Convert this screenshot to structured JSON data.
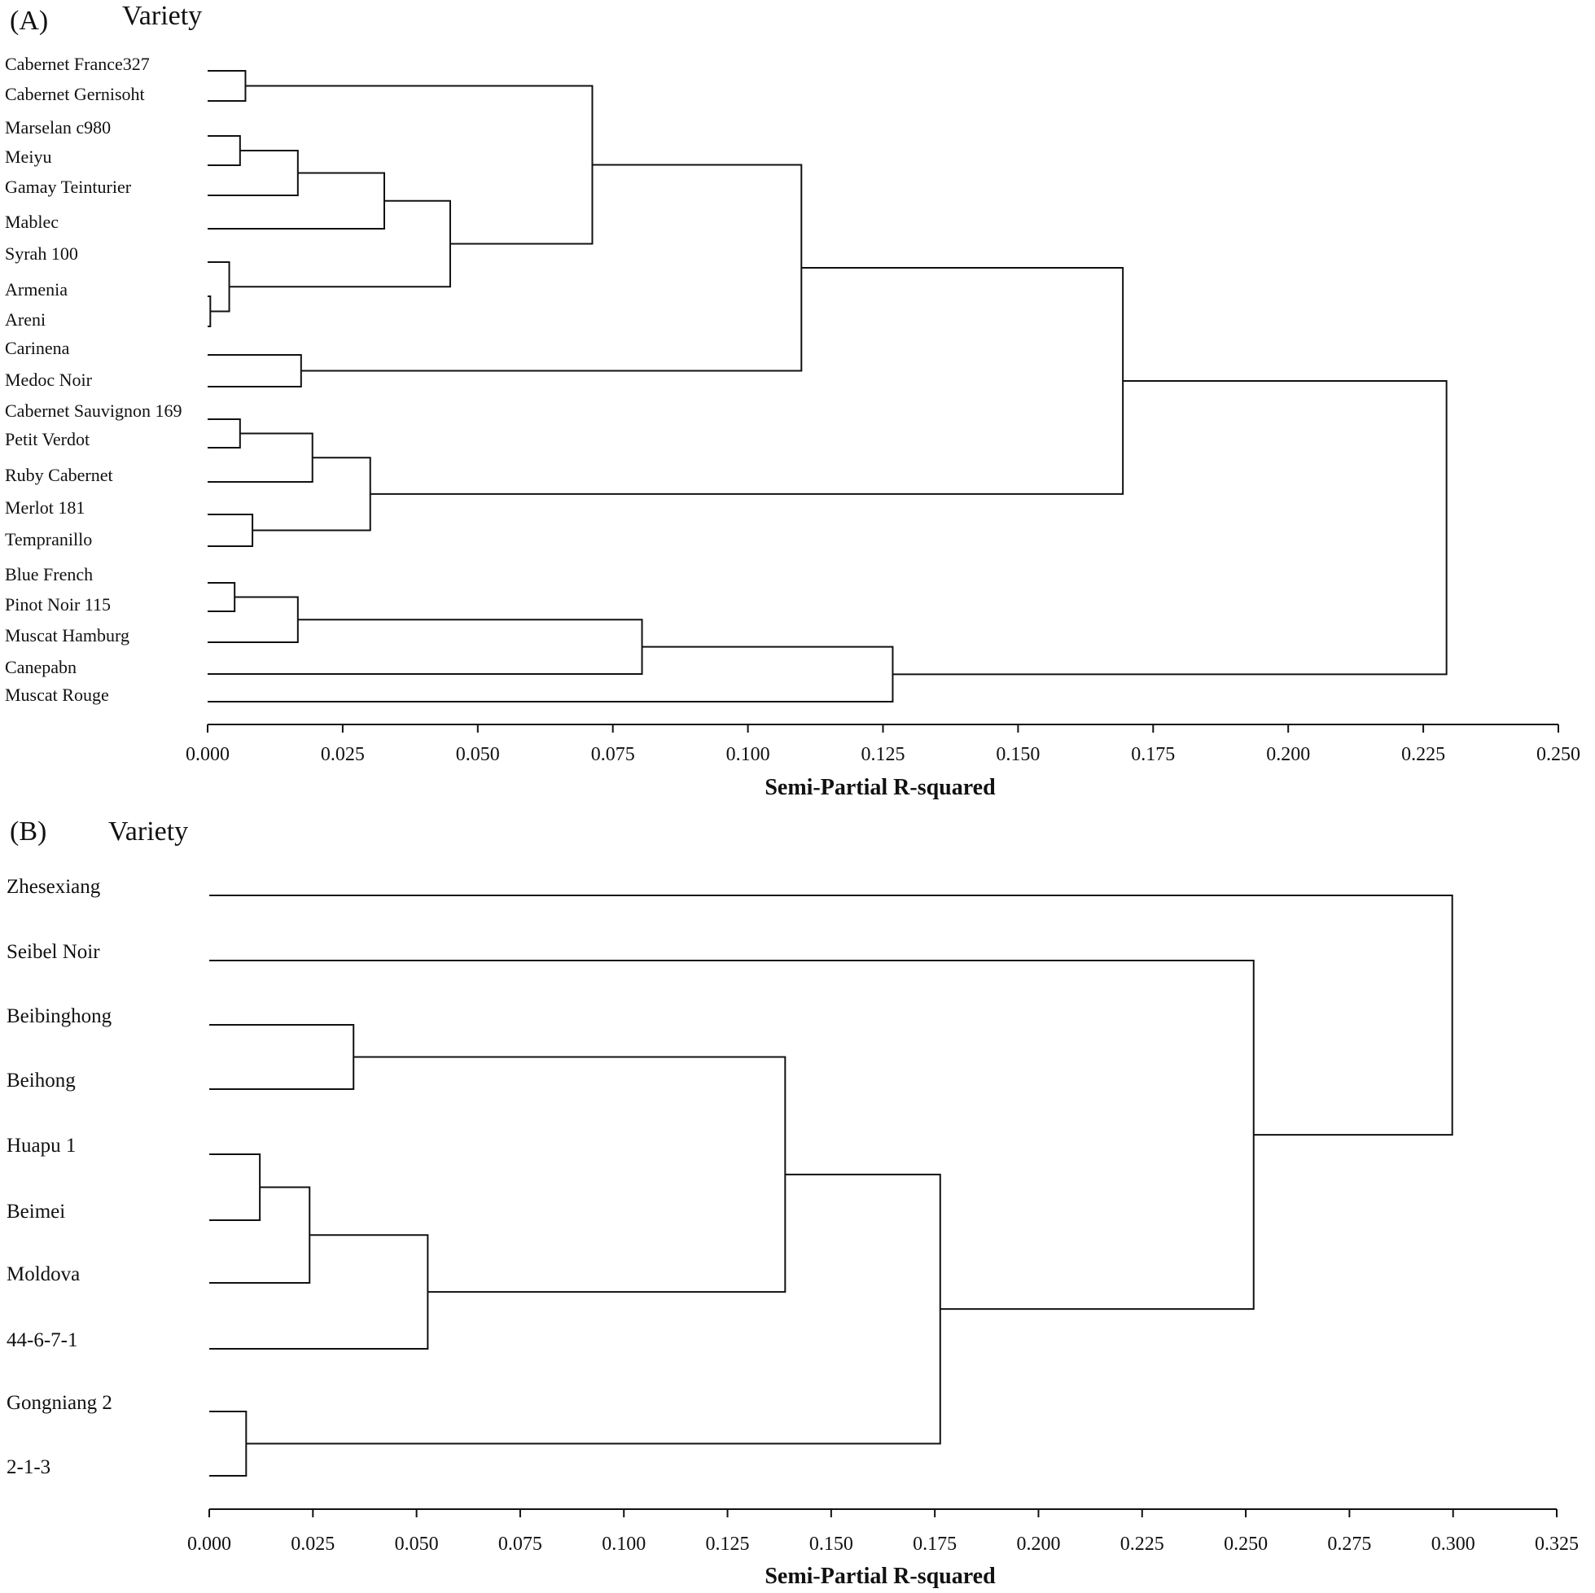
{
  "chart_data": [
    {
      "type": "dendrogram",
      "panel": "(A)",
      "title": "Variety",
      "xlabel": "Semi-Partial R-squared",
      "xlim": [
        0,
        0.25
      ],
      "ticks": [
        "0.000",
        "0.025",
        "0.050",
        "0.075",
        "0.100",
        "0.125",
        "0.150",
        "0.175",
        "0.200",
        "0.225",
        "0.250"
      ],
      "leaves": [
        "Cabernet France327",
        "Cabernet Gernisoht",
        "Marselan c980",
        "Meiyu",
        "Gamay Teinturier",
        "Mablec",
        "Syrah 100",
        "Armenia",
        "Areni",
        "Carinena",
        "Medoc Noir",
        "Cabernet Sauvignon 169",
        "Petit Verdot",
        "Ruby Cabernet",
        "Merlot 181",
        "Tempranillo",
        "Blue French",
        "Pinot Noir 115",
        "Muscat Hamburg",
        "Canepabn",
        "Muscat Rouge"
      ],
      "merges": [
        {
          "id": "a",
          "children": [
            "L:Cabernet France327",
            "L:Cabernet Gernisoht"
          ],
          "height": 0.007
        },
        {
          "id": "b",
          "children": [
            "L:Marselan c980",
            "L:Meiyu"
          ],
          "height": 0.006
        },
        {
          "id": "c",
          "children": [
            "N:b",
            "L:Gamay Teinturier"
          ],
          "height": 0.0167
        },
        {
          "id": "d",
          "children": [
            "N:c",
            "L:Mablec"
          ],
          "height": 0.0327
        },
        {
          "id": "e",
          "children": [
            "L:Armenia",
            "L:Areni"
          ],
          "height": 0.0005
        },
        {
          "id": "f",
          "children": [
            "L:Syrah 100",
            "N:e"
          ],
          "height": 0.004
        },
        {
          "id": "g",
          "children": [
            "N:d",
            "N:f"
          ],
          "height": 0.0449
        },
        {
          "id": "h",
          "children": [
            "N:a",
            "N:g"
          ],
          "height": 0.0712
        },
        {
          "id": "i",
          "children": [
            "L:Carinena",
            "L:Medoc Noir"
          ],
          "height": 0.0173
        },
        {
          "id": "j",
          "children": [
            "N:h",
            "N:i"
          ],
          "height": 0.1099
        },
        {
          "id": "k",
          "children": [
            "L:Cabernet Sauvignon 169",
            "L:Petit Verdot"
          ],
          "height": 0.006
        },
        {
          "id": "l",
          "children": [
            "N:k",
            "L:Ruby Cabernet"
          ],
          "height": 0.0194
        },
        {
          "id": "m",
          "children": [
            "L:Merlot 181",
            "L:Tempranillo"
          ],
          "height": 0.0083
        },
        {
          "id": "n",
          "children": [
            "N:l",
            "N:m"
          ],
          "height": 0.0301
        },
        {
          "id": "o",
          "children": [
            "N:j",
            "N:n"
          ],
          "height": 0.1694
        },
        {
          "id": "p",
          "children": [
            "L:Blue French",
            "L:Pinot Noir 115"
          ],
          "height": 0.005
        },
        {
          "id": "q",
          "children": [
            "N:p",
            "L:Muscat Hamburg"
          ],
          "height": 0.0167
        },
        {
          "id": "r",
          "children": [
            "N:q",
            "L:Canepabn"
          ],
          "height": 0.0804
        },
        {
          "id": "s",
          "children": [
            "N:r",
            "L:Muscat Rouge"
          ],
          "height": 0.1268
        },
        {
          "id": "t",
          "children": [
            "N:o",
            "N:s"
          ],
          "height": 0.2293
        }
      ]
    },
    {
      "type": "dendrogram",
      "panel": "(B)",
      "title": "Variety",
      "xlabel": "Semi-Partial R-squared",
      "xlim": [
        0,
        0.325
      ],
      "ticks": [
        "0.000",
        "0.025",
        "0.050",
        "0.075",
        "0.100",
        "0.125",
        "0.150",
        "0.175",
        "0.200",
        "0.225",
        "0.250",
        "0.275",
        "0.300",
        "0.325"
      ],
      "leaves": [
        "Zhesexiang",
        "Seibel Noir",
        "Beibinghong",
        "Beihong",
        "Huapu 1",
        "Beimei",
        "Moldova",
        "44-6-7-1",
        "Gongniang 2",
        "2-1-3"
      ],
      "merges": [
        {
          "id": "a",
          "children": [
            "L:Beibinghong",
            "L:Beihong"
          ],
          "height": 0.0348
        },
        {
          "id": "b",
          "children": [
            "L:Huapu 1",
            "L:Beimei"
          ],
          "height": 0.0122
        },
        {
          "id": "c",
          "children": [
            "N:b",
            "L:Moldova"
          ],
          "height": 0.0242
        },
        {
          "id": "d",
          "children": [
            "N:c",
            "L:44-6-7-1"
          ],
          "height": 0.0527
        },
        {
          "id": "e",
          "children": [
            "N:a",
            "N:d"
          ],
          "height": 0.1389
        },
        {
          "id": "f",
          "children": [
            "L:Gongniang 2",
            "L:2-1-3"
          ],
          "height": 0.0089
        },
        {
          "id": "g",
          "children": [
            "N:e",
            "N:f"
          ],
          "height": 0.1763
        },
        {
          "id": "h",
          "children": [
            "L:Seibel Noir",
            "N:g"
          ],
          "height": 0.2519
        },
        {
          "id": "i",
          "children": [
            "L:Zhesexiang",
            "N:h"
          ],
          "height": 0.2998
        }
      ]
    }
  ]
}
